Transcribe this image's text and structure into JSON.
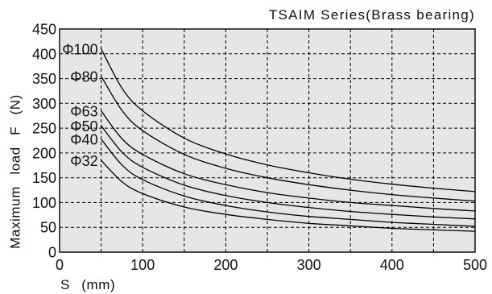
{
  "chart_data": {
    "type": "line",
    "title": "TSAIM Series(Brass bearing)",
    "xlabel": "S (mm)",
    "ylabel": "Maximum load F (N)",
    "xlim": [
      0,
      500
    ],
    "ylim": [
      0,
      450
    ],
    "xticks": [
      0,
      100,
      200,
      300,
      400,
      500
    ],
    "yticks": [
      0,
      50,
      100,
      150,
      200,
      250,
      300,
      350,
      400,
      450
    ],
    "grid": true,
    "grid_interval": {
      "x": 50,
      "y": 50
    },
    "legend": "inline-left",
    "x": [
      50,
      75,
      100,
      150,
      200,
      250,
      300,
      350,
      400,
      450,
      500
    ],
    "series": [
      {
        "name": "Φ100",
        "values": [
          410,
          331,
          285,
          230,
          198,
          176,
          160,
          147,
          137,
          129,
          122
        ]
      },
      {
        "name": "Φ80",
        "values": [
          355,
          286,
          245,
          197,
          169,
          150,
          136,
          125,
          116,
          109,
          103
        ]
      },
      {
        "name": "Φ63",
        "values": [
          285,
          229,
          197,
          158,
          136,
          120,
          109,
          100,
          94,
          88,
          83
        ]
      },
      {
        "name": "Φ50",
        "values": [
          255,
          202,
          171,
          135,
          114,
          100,
          90,
          82,
          76,
          71,
          67
        ]
      },
      {
        "name": "Φ40",
        "values": [
          228,
          176,
          146,
          113,
          94,
          81,
          72,
          66,
          60,
          56,
          52
        ]
      },
      {
        "name": "Φ32",
        "values": [
          185,
          142,
          118,
          91,
          76,
          66,
          58,
          53,
          48,
          45,
          42
        ]
      }
    ],
    "colors": {
      "plot_background": "#e6e6e6",
      "gridlines": "#000000",
      "curves": "#000000",
      "axes": "#000000"
    }
  }
}
